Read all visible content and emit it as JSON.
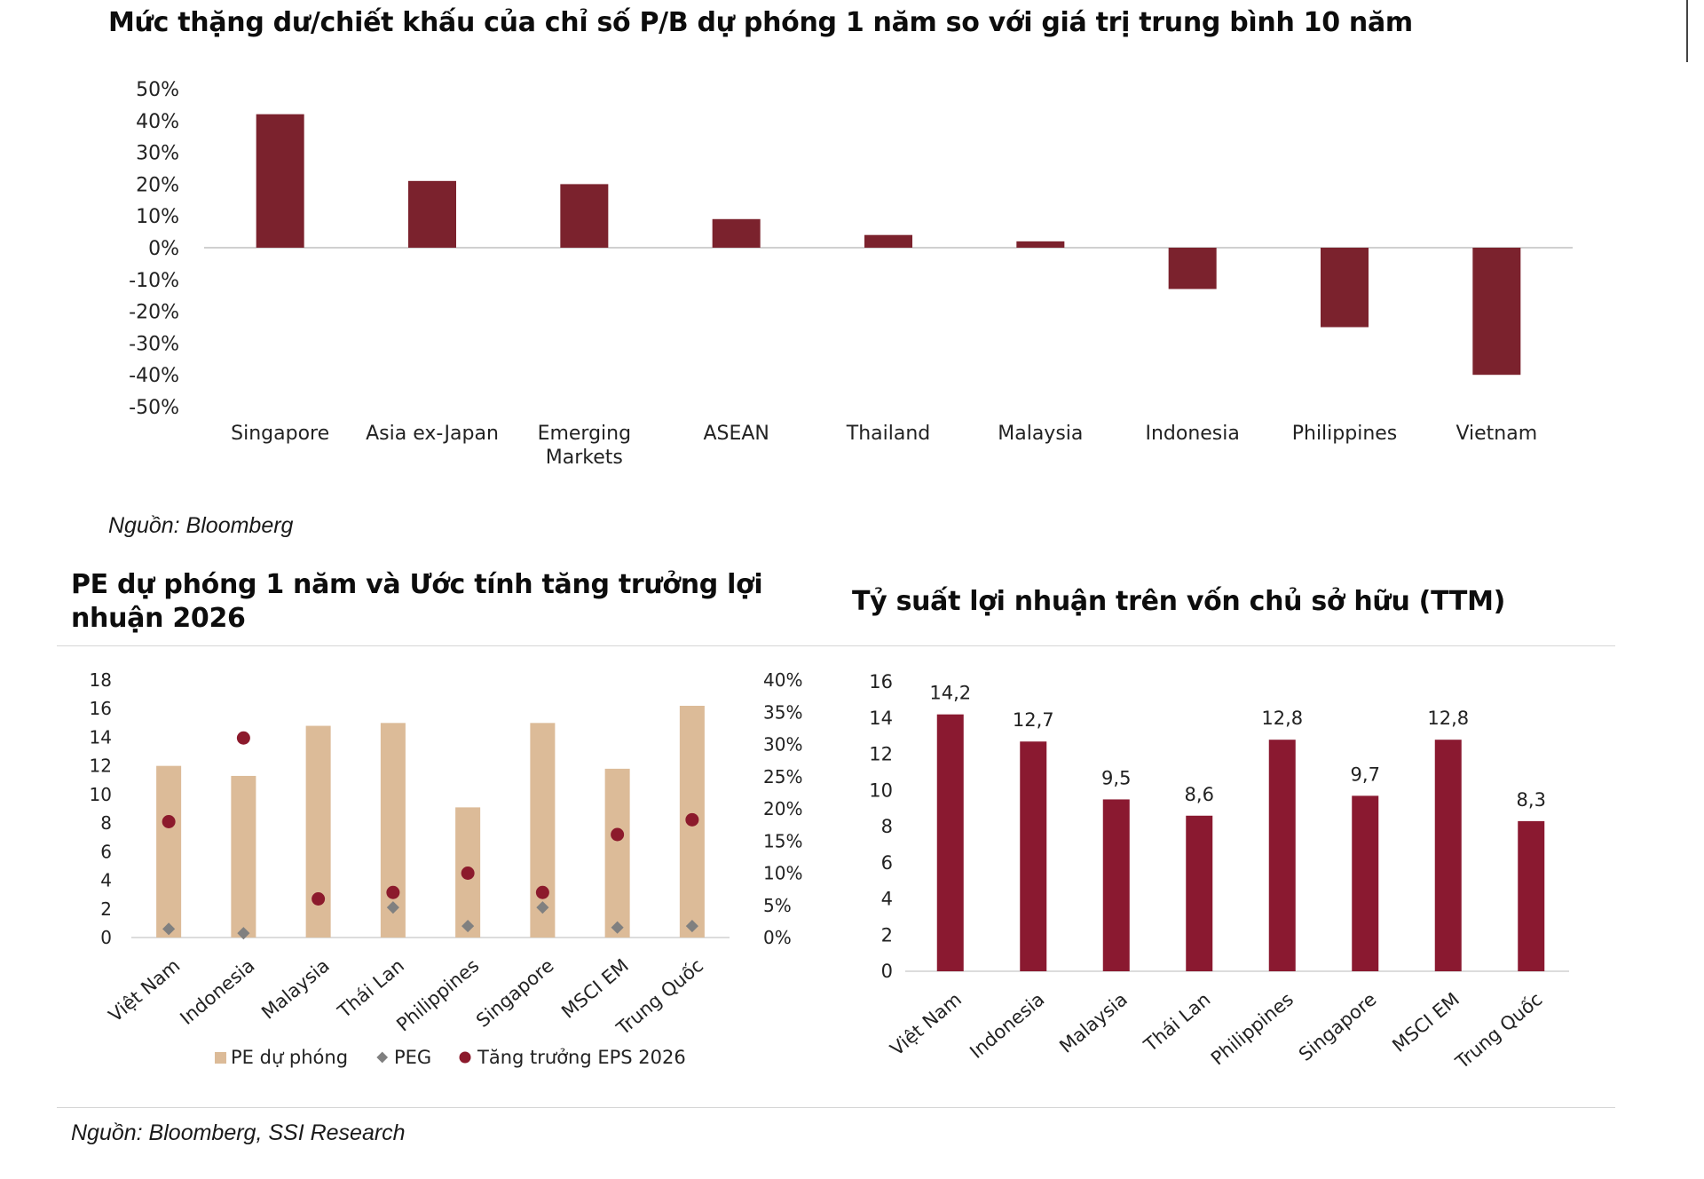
{
  "chart_data": [
    {
      "type": "bar",
      "title": "Mức thặng dư/chiết khấu của chỉ số P/B dự phóng 1 năm so với giá trị trung bình 10 năm",
      "categories": [
        "Singapore",
        "Asia ex-Japan",
        "Emerging Markets",
        "ASEAN",
        "Thailand",
        "Malaysia",
        "Indonesia",
        "Philippines",
        "Vietnam"
      ],
      "values": [
        42,
        21,
        20,
        9,
        4,
        2,
        -13,
        -25,
        -40
      ],
      "ylim": [
        -50,
        50
      ],
      "yticks": [
        "50%",
        "40%",
        "30%",
        "20%",
        "10%",
        "0%",
        "-10%",
        "-20%",
        "-30%",
        "-40%",
        "-50%"
      ],
      "color": "#7b222d",
      "source": "Nguồn: Bloomberg"
    },
    {
      "type": "bar",
      "title": "PE dự phóng 1 năm và Ước tính tăng trưởng lợi nhuận 2026",
      "categories": [
        "Việt Nam",
        "Indonesia",
        "Malaysia",
        "Thái Lan",
        "Philippines",
        "Singapore",
        "MSCI EM",
        "Trung Quốc"
      ],
      "series": [
        {
          "name": "PE dự phóng",
          "axis": "left",
          "kind": "bar",
          "color": "#dcbb98",
          "values": [
            12.0,
            11.3,
            14.8,
            15.0,
            9.1,
            15.0,
            11.8,
            16.2
          ]
        },
        {
          "name": "PEG",
          "axis": "left",
          "kind": "marker",
          "color": "#808080",
          "values": [
            0.6,
            0.3,
            null,
            2.1,
            0.8,
            2.1,
            0.7,
            0.8
          ]
        },
        {
          "name": "Tăng trưởng EPS 2026",
          "axis": "right",
          "kind": "dot",
          "color": "#8c1a2c",
          "values": [
            18,
            31,
            6,
            7,
            10,
            7,
            16,
            18.3
          ]
        }
      ],
      "ylim_left": [
        0,
        18
      ],
      "yticks_left": [
        "18",
        "16",
        "14",
        "12",
        "10",
        "8",
        "6",
        "4",
        "2",
        "0"
      ],
      "ylim_right": [
        0,
        40
      ],
      "yticks_right": [
        "40%",
        "35%",
        "30%",
        "25%",
        "20%",
        "15%",
        "10%",
        "5%",
        "0%"
      ],
      "legend": [
        "PE dự phóng",
        "PEG",
        "Tăng trưởng EPS 2026"
      ],
      "legend_position": "bottom"
    },
    {
      "type": "bar",
      "title": "Tỷ suất lợi nhuận trên vốn chủ sở hữu (TTM)",
      "categories": [
        "Việt Nam",
        "Indonesia",
        "Malaysia",
        "Thái Lan",
        "Philippines",
        "Singapore",
        "MSCI EM",
        "Trung Quốc"
      ],
      "values": [
        14.2,
        12.7,
        9.5,
        8.6,
        12.8,
        9.7,
        12.8,
        8.3
      ],
      "labels": [
        "14,2",
        "12,7",
        "9,5",
        "8,6",
        "12,8",
        "9,7",
        "12,8",
        "8,3"
      ],
      "ylim": [
        0,
        16
      ],
      "yticks": [
        "16",
        "14",
        "12",
        "10",
        "8",
        "6",
        "4",
        "2",
        "0"
      ],
      "color": "#8a1930",
      "source": "Nguồn: Bloomberg, SSI Research"
    }
  ]
}
